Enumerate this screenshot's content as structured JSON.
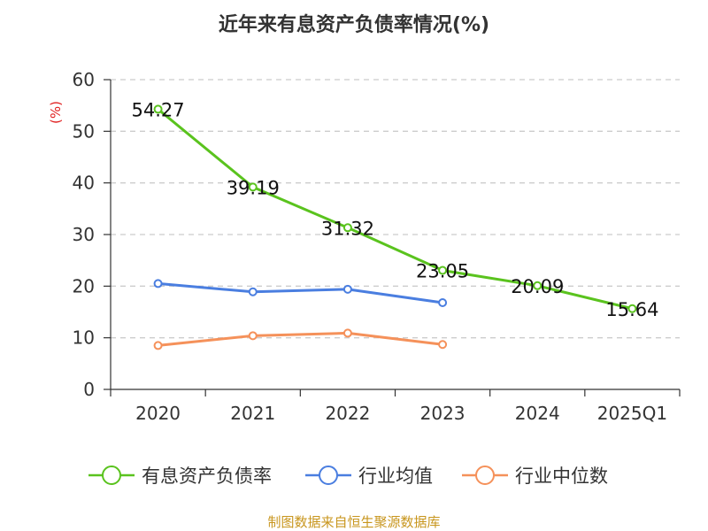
{
  "chart_data": {
    "type": "line",
    "title": "近年来有息资产负债率情况(%)",
    "ylabel": "(%)",
    "xlabel": "",
    "categories": [
      "2020",
      "2021",
      "2022",
      "2023",
      "2024",
      "2025Q1"
    ],
    "ylim": [
      0,
      60
    ],
    "yticks": [
      0,
      10,
      20,
      30,
      40,
      50,
      60
    ],
    "grid": true,
    "legend_position": "bottom",
    "series": [
      {
        "name": "有息资产负债率",
        "color": "#5ac31e",
        "values": [
          54.27,
          39.19,
          31.32,
          23.05,
          20.09,
          15.64
        ],
        "labels": [
          "54.27",
          "39.19",
          "31.32",
          "23.05",
          "20.09",
          "15.64"
        ]
      },
      {
        "name": "行业均值",
        "color": "#4a7ee0",
        "values": [
          20.5,
          18.9,
          19.4,
          16.8,
          null,
          null
        ]
      },
      {
        "name": "行业中位数",
        "color": "#f5915a",
        "values": [
          8.5,
          10.4,
          10.9,
          8.7,
          null,
          null
        ]
      }
    ],
    "source": "制图数据来自恒生聚源数据库"
  }
}
